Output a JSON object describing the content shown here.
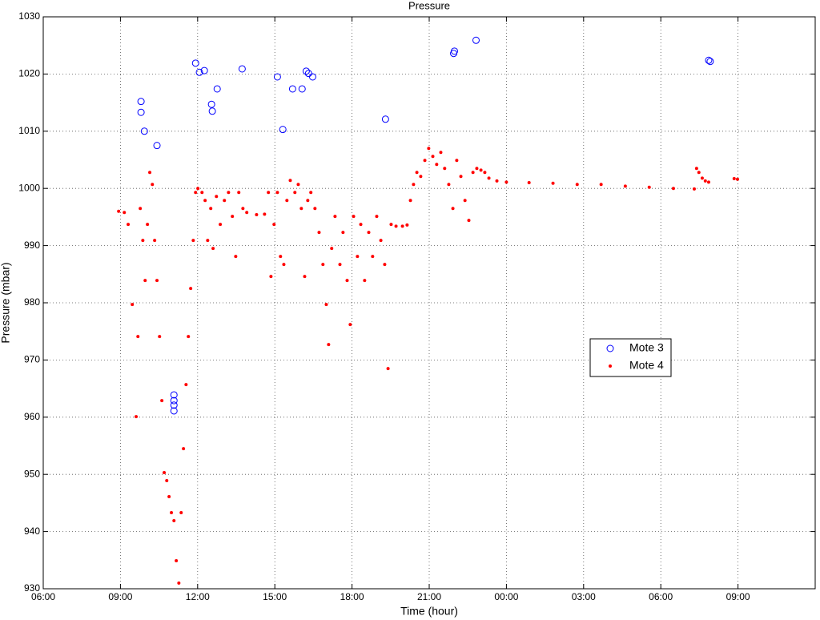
{
  "chart_data": {
    "type": "scatter",
    "title": "Pressure",
    "xlabel": "Time (hour)",
    "ylabel": "Pressure (mbar)",
    "xlim": [
      6,
      36
    ],
    "ylim": [
      930,
      1030
    ],
    "xticks": [
      {
        "value": 6,
        "label": "06:00"
      },
      {
        "value": 9,
        "label": "09:00"
      },
      {
        "value": 12,
        "label": "12:00"
      },
      {
        "value": 15,
        "label": "15:00"
      },
      {
        "value": 18,
        "label": "18:00"
      },
      {
        "value": 21,
        "label": "21:00"
      },
      {
        "value": 24,
        "label": "00:00"
      },
      {
        "value": 27,
        "label": "03:00"
      },
      {
        "value": 30,
        "label": "06:00"
      },
      {
        "value": 33,
        "label": "09:00"
      }
    ],
    "yticks": [
      930,
      940,
      950,
      960,
      970,
      980,
      990,
      1000,
      1010,
      1020,
      1030
    ],
    "grid": true,
    "legend": "right",
    "series": [
      {
        "name": "Mote 3",
        "color": "#0000ff",
        "marker": "circle",
        "x": [
          9.8,
          9.8,
          9.93,
          10.42,
          11.08,
          11.08,
          11.08,
          11.08,
          11.92,
          12.07,
          12.26,
          12.54,
          12.57,
          12.76,
          13.73,
          15.1,
          15.31,
          15.69,
          16.06,
          16.22,
          16.31,
          16.47,
          19.3,
          21.95,
          21.98,
          22.82,
          31.86,
          31.92
        ],
        "values": [
          1015.2,
          1013.3,
          1010.0,
          1007.5,
          963.9,
          962.9,
          962.1,
          961.1,
          1021.9,
          1020.3,
          1020.6,
          1014.7,
          1013.5,
          1017.4,
          1020.9,
          1019.5,
          1010.3,
          1017.4,
          1017.4,
          1020.5,
          1020.1,
          1019.5,
          1012.1,
          1023.6,
          1024.0,
          1025.9,
          1022.4,
          1022.2
        ]
      },
      {
        "name": "Mote 4",
        "color": "#ff0000",
        "marker": "dot",
        "x": [
          8.93,
          9.15,
          9.3,
          9.46,
          9.61,
          9.68,
          9.77,
          9.87,
          9.96,
          10.05,
          10.14,
          10.24,
          10.33,
          10.42,
          10.52,
          10.61,
          10.7,
          10.8,
          10.89,
          10.98,
          11.08,
          11.17,
          11.27,
          11.36,
          11.45,
          11.55,
          11.64,
          11.73,
          11.83,
          11.92,
          12.01,
          12.17,
          12.29,
          12.39,
          12.51,
          12.6,
          12.73,
          12.88,
          13.04,
          13.2,
          13.35,
          13.48,
          13.6,
          13.76,
          13.91,
          14.29,
          14.6,
          14.75,
          14.85,
          14.97,
          15.1,
          15.22,
          15.35,
          15.47,
          15.6,
          15.78,
          15.91,
          16.03,
          16.16,
          16.28,
          16.4,
          16.56,
          16.72,
          16.87,
          17.0,
          17.09,
          17.21,
          17.34,
          17.53,
          17.65,
          17.81,
          17.93,
          18.06,
          18.21,
          18.34,
          18.49,
          18.65,
          18.8,
          18.96,
          19.12,
          19.27,
          19.4,
          19.52,
          19.71,
          19.96,
          20.14,
          20.27,
          20.39,
          20.52,
          20.67,
          20.83,
          20.98,
          21.14,
          21.29,
          21.45,
          21.6,
          21.76,
          21.92,
          22.07,
          22.23,
          22.39,
          22.54,
          22.7,
          22.85,
          23.01,
          23.16,
          23.32,
          23.63,
          24.0,
          24.88,
          25.81,
          26.75,
          27.68,
          28.62,
          29.55,
          30.49,
          31.3,
          31.39,
          31.48,
          31.61,
          31.73,
          31.86,
          32.85,
          32.98
        ],
        "values": [
          996.0,
          995.8,
          993.7,
          979.7,
          960.1,
          974.1,
          996.5,
          990.9,
          983.9,
          993.7,
          1002.8,
          1000.7,
          990.9,
          983.9,
          974.1,
          962.9,
          950.3,
          948.9,
          946.1,
          943.3,
          941.9,
          934.9,
          931.0,
          943.3,
          954.5,
          965.7,
          974.1,
          982.5,
          990.9,
          999.3,
          1000.0,
          999.3,
          997.9,
          990.9,
          996.5,
          989.5,
          998.6,
          993.7,
          997.9,
          999.3,
          995.1,
          988.1,
          999.3,
          996.5,
          995.8,
          995.4,
          995.5,
          999.3,
          984.6,
          993.7,
          999.3,
          988.1,
          986.7,
          997.9,
          1001.4,
          999.3,
          1000.7,
          996.5,
          984.6,
          997.9,
          999.3,
          996.5,
          992.3,
          986.7,
          979.7,
          972.7,
          989.5,
          995.1,
          986.7,
          992.3,
          983.9,
          976.2,
          995.1,
          988.1,
          993.7,
          983.9,
          992.3,
          988.1,
          995.1,
          990.9,
          986.7,
          968.5,
          993.7,
          993.4,
          993.4,
          993.6,
          997.9,
          1000.7,
          1002.8,
          1002.1,
          1004.9,
          1007.0,
          1005.6,
          1004.2,
          1006.3,
          1003.5,
          1000.7,
          996.5,
          1004.9,
          1002.1,
          997.9,
          994.4,
          1002.8,
          1003.5,
          1003.2,
          1002.8,
          1001.8,
          1001.3,
          1001.1,
          1001.0,
          1000.9,
          1000.7,
          1000.7,
          1000.4,
          1000.2,
          1000.0,
          999.9,
          1003.5,
          1002.8,
          1001.8,
          1001.3,
          1001.1,
          1001.7,
          1001.6
        ]
      }
    ]
  }
}
